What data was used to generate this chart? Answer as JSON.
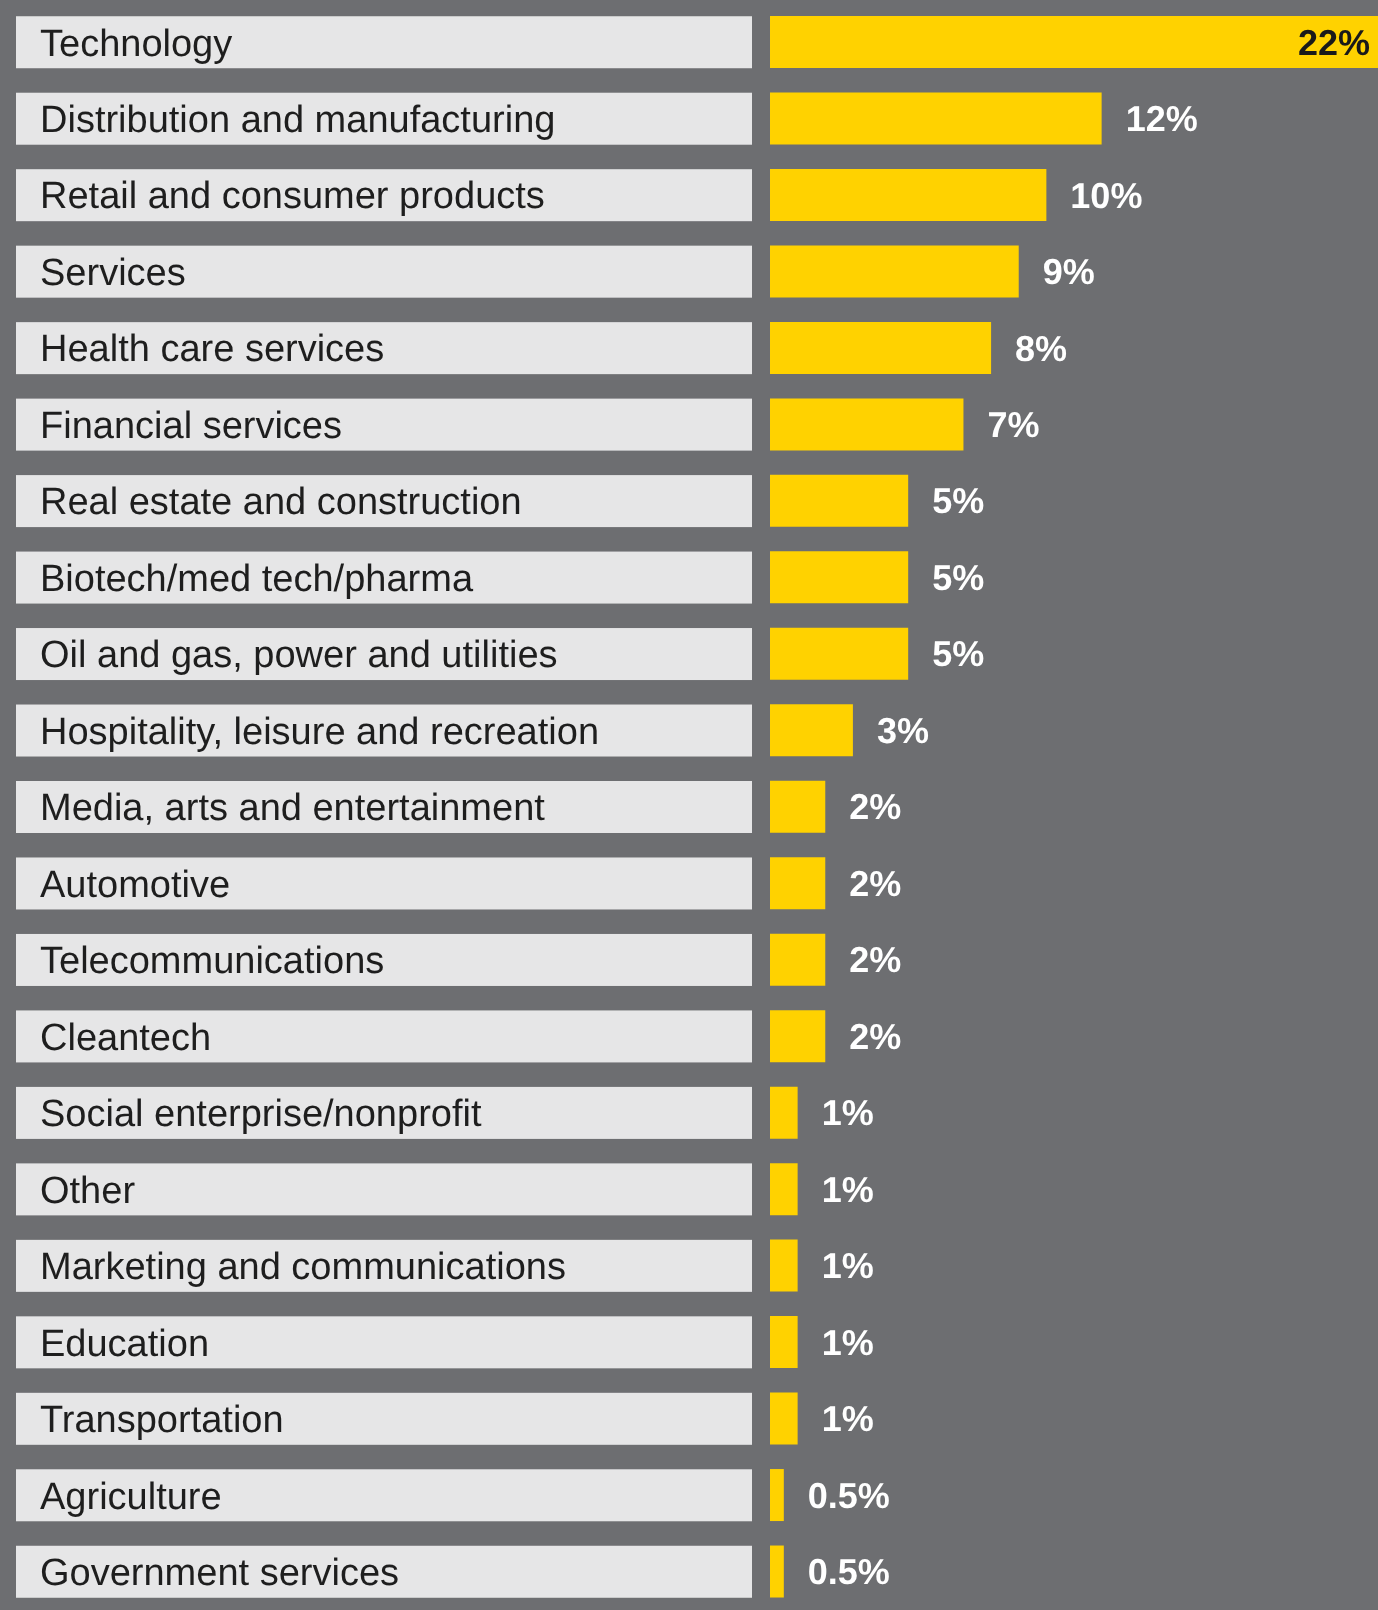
{
  "chart_data": {
    "type": "bar",
    "orientation": "horizontal",
    "categories": [
      "Technology",
      "Distribution and manufacturing",
      "Retail and consumer products",
      "Services",
      "Health care services",
      "Financial services",
      "Real estate and construction",
      "Biotech/med tech/pharma",
      "Oil and gas, power and utilities",
      "Hospitality, leisure and recreation",
      "Media, arts and entertainment",
      "Automotive",
      "Telecommunications",
      "Cleantech",
      "Social enterprise/nonprofit",
      "Other",
      "Marketing and communications",
      "Education",
      "Transportation",
      "Agriculture",
      "Government services"
    ],
    "values": [
      22,
      12,
      10,
      9,
      8,
      7,
      5,
      5,
      5,
      3,
      2,
      2,
      2,
      2,
      1,
      1,
      1,
      1,
      1,
      0.5,
      0.5
    ],
    "value_labels": [
      "22%",
      "12%",
      "10%",
      "9%",
      "8%",
      "7%",
      "5%",
      "5%",
      "5%",
      "3%",
      "2%",
      "2%",
      "2%",
      "2%",
      "1%",
      "1%",
      "1%",
      "1%",
      "1%",
      "0.5%",
      "0.5%"
    ],
    "color": "#ffd200"
  }
}
